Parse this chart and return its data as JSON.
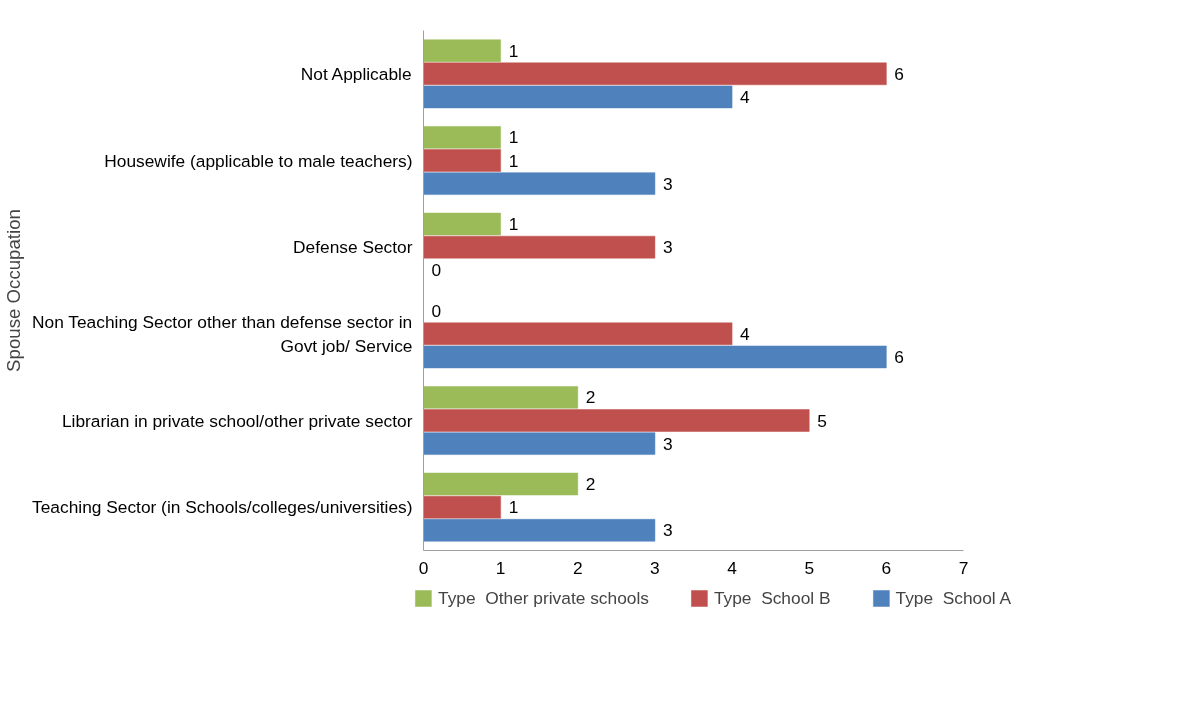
{
  "chart_data": {
    "type": "bar",
    "orientation": "horizontal",
    "ylabel": "Spouse Occupation",
    "categories": [
      "Not Applicable",
      "Housewife (applicable to male teachers)",
      "Defense Sector",
      "Non Teaching Sector other than defense sector in\nGovt job/ Service",
      "Librarian in private school/other private sector",
      "Teaching Sector (in Schools/colleges/universities)"
    ],
    "series": [
      {
        "name": "Type  Other private schools",
        "color": "#9bbb59",
        "values": [
          1,
          1,
          1,
          0,
          2,
          2
        ]
      },
      {
        "name": "Type  School B",
        "color": "#c0504d",
        "values": [
          6,
          1,
          3,
          4,
          5,
          1
        ]
      },
      {
        "name": "Type  School A",
        "color": "#4f81bd",
        "values": [
          4,
          3,
          0,
          6,
          3,
          3
        ]
      }
    ],
    "xlim": [
      0,
      7
    ],
    "xticks": [
      0,
      1,
      2,
      3,
      4,
      5,
      6,
      7
    ],
    "data_labels": true,
    "grid": false,
    "legend": "bottom"
  }
}
